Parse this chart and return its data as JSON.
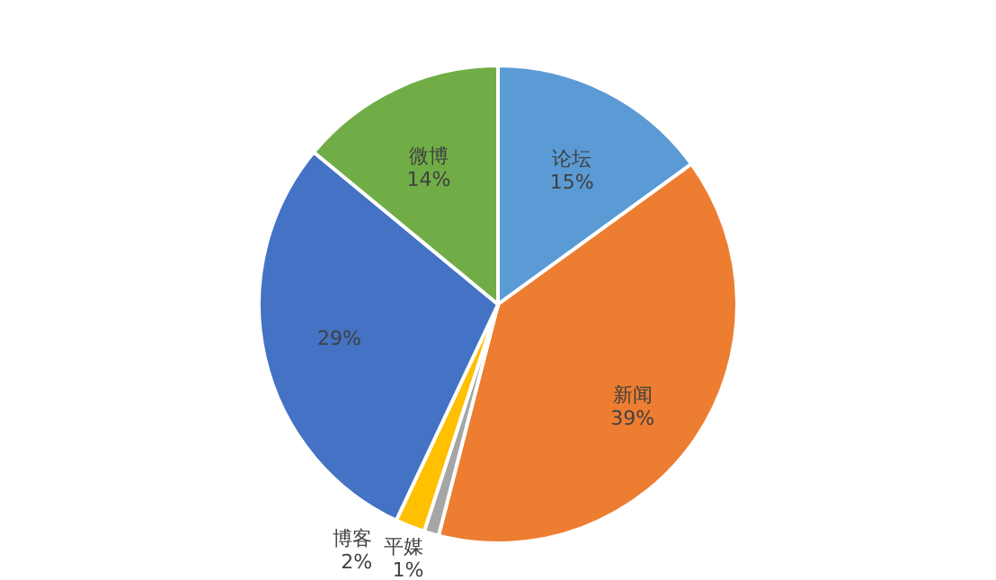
{
  "chart_data": {
    "type": "pie",
    "categories": [
      "论坛",
      "新闻",
      "平媒",
      "博客",
      null,
      "微博"
    ],
    "values": [
      15,
      39,
      1,
      2,
      29,
      14
    ],
    "value_labels": [
      "15%",
      "39%",
      "1%",
      "2%",
      "29%",
      "14%"
    ],
    "colors": [
      "#5b9bd5",
      "#ed7d31",
      "#a5a5a5",
      "#ffc000",
      "#4472c4",
      "#70ad47"
    ]
  }
}
